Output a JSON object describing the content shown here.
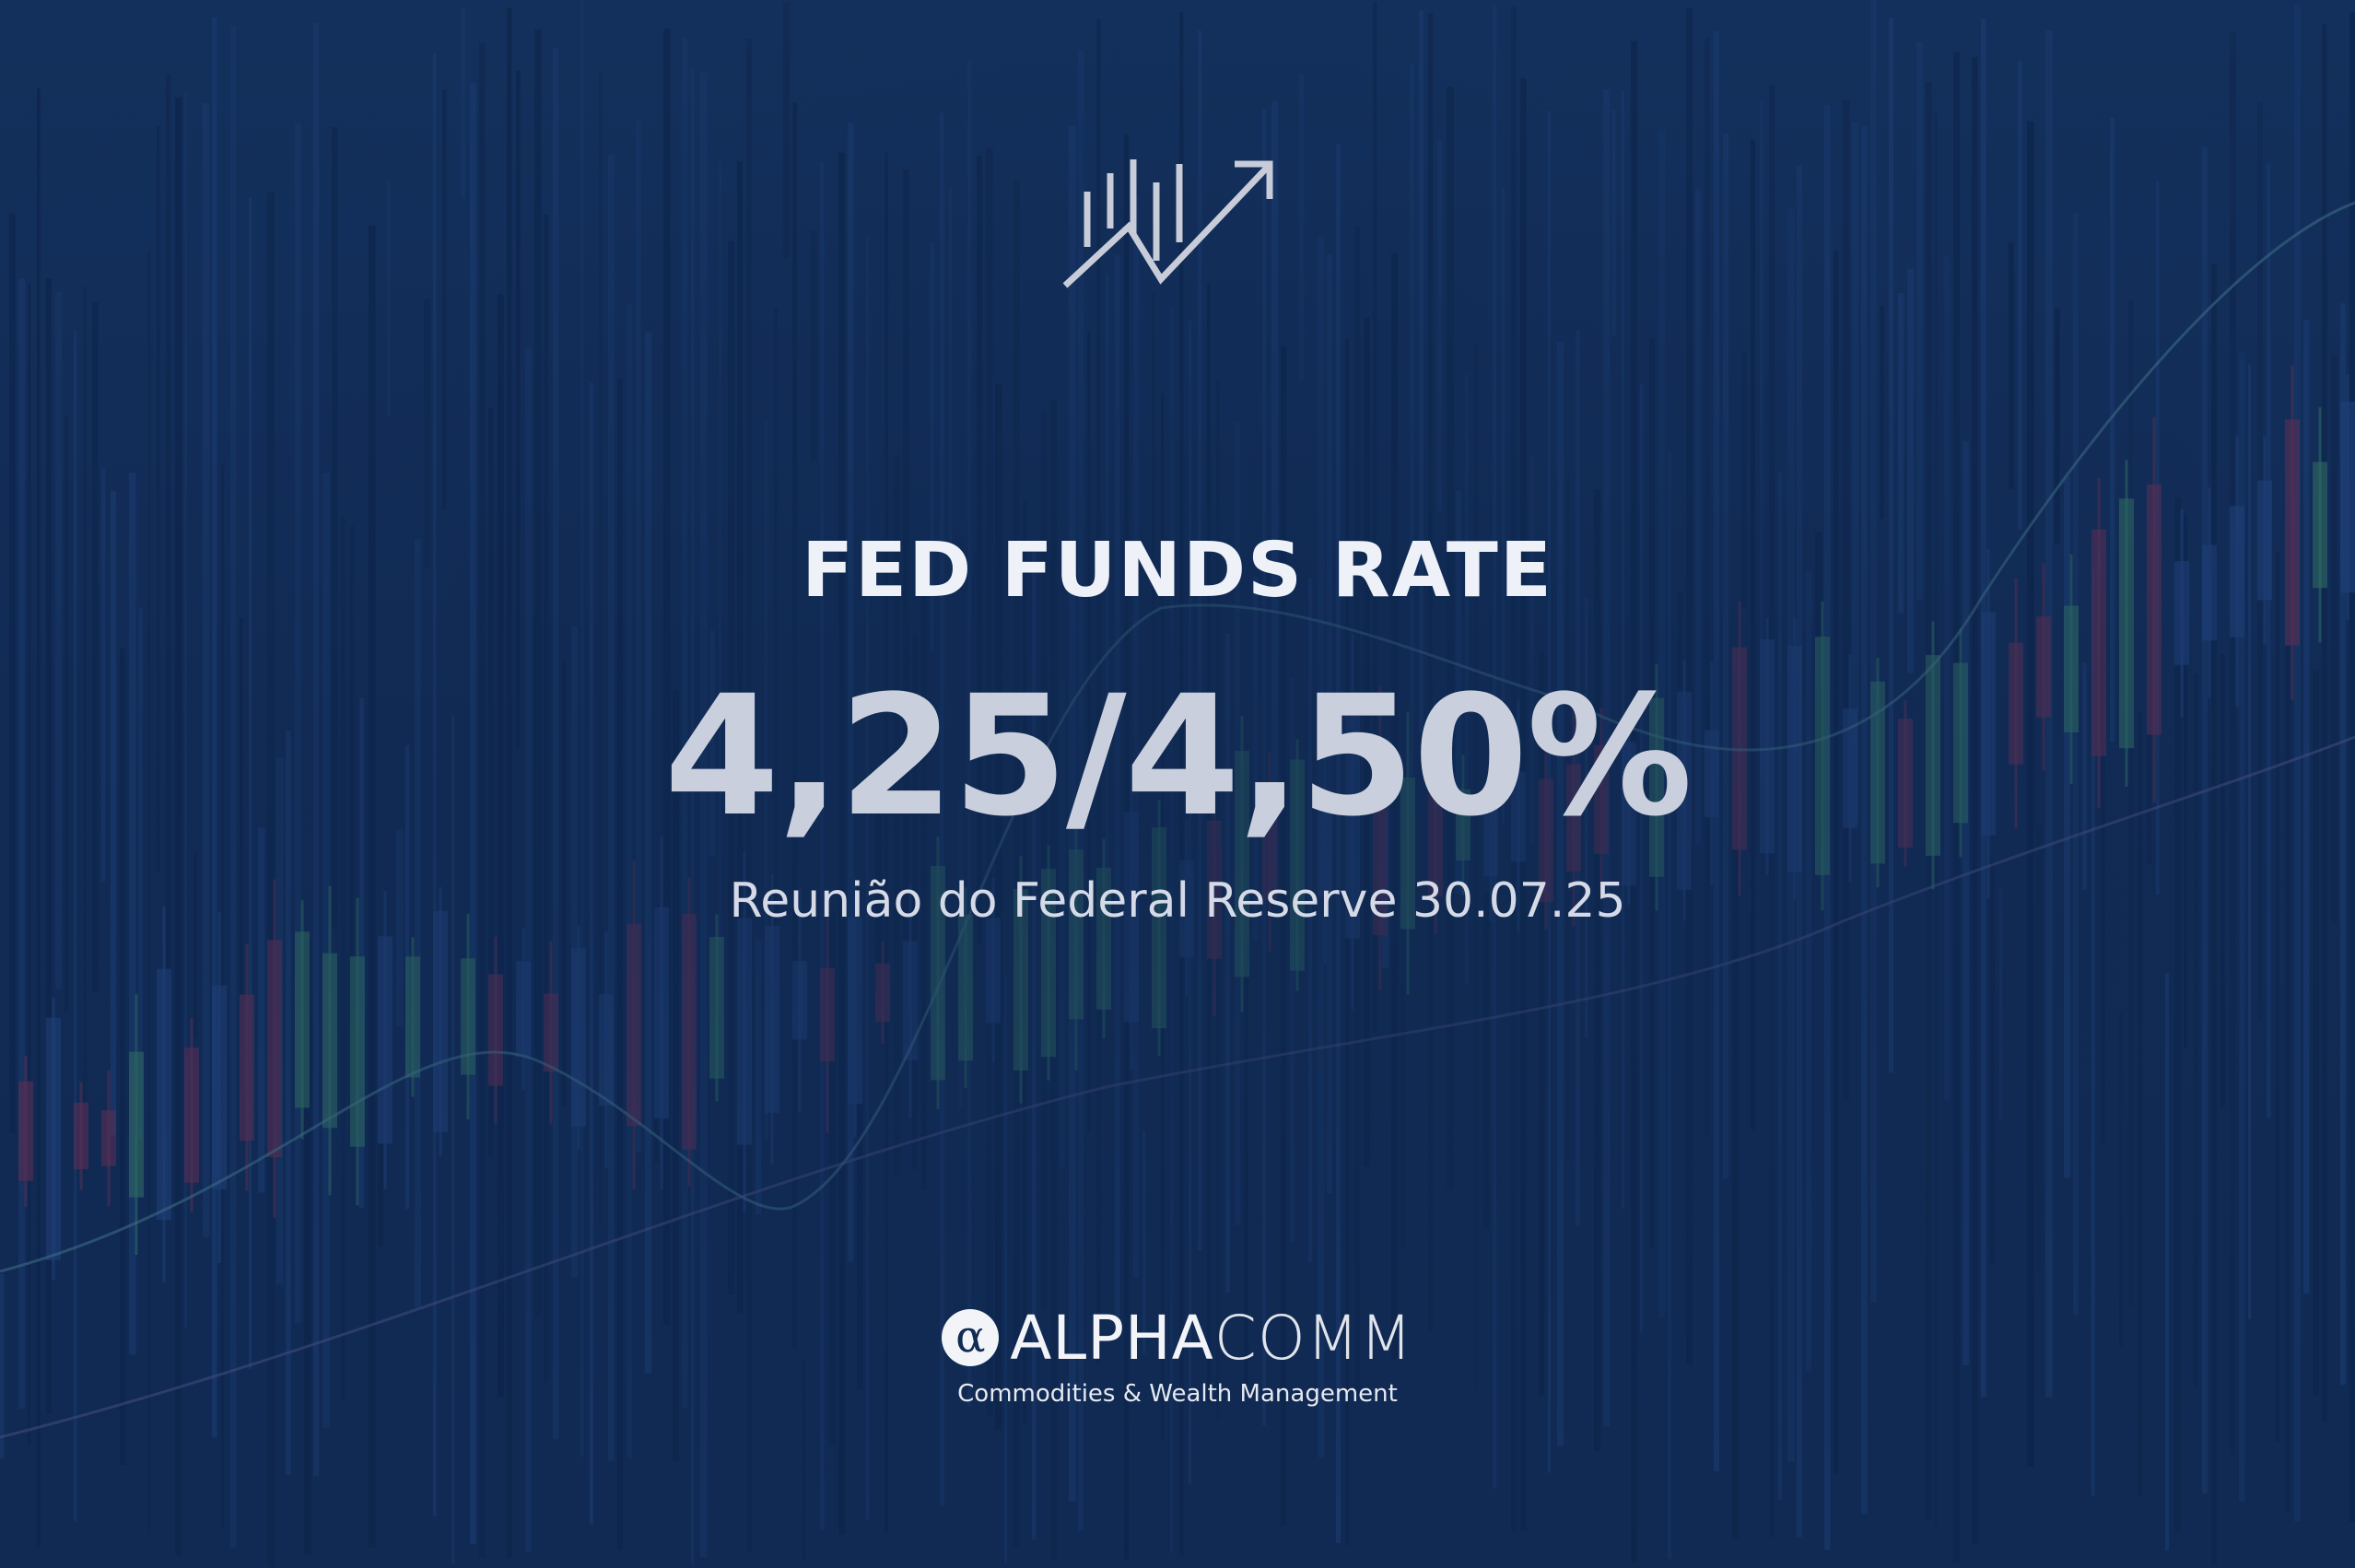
{
  "headline": "FED FUNDS RATE",
  "rate": "4,25/4,50%",
  "subtitle": "Reunião do Federal Reserve 30.07.25",
  "brand": {
    "logo_glyph": "α",
    "name_bold": "ALPHA",
    "name_light": "COMM",
    "tagline": "Commodities & Wealth Management"
  },
  "icons": {
    "top": "rising-chart-arrow-icon",
    "logo": "alpha-circle-icon"
  },
  "colors": {
    "background": "#112b55",
    "text_primary": "#eef1f7",
    "text_rate": "#c9cfdc",
    "candle_up": "#2e6b63",
    "candle_down": "#5a2f55",
    "candle_neutral": "#1f3f78"
  }
}
